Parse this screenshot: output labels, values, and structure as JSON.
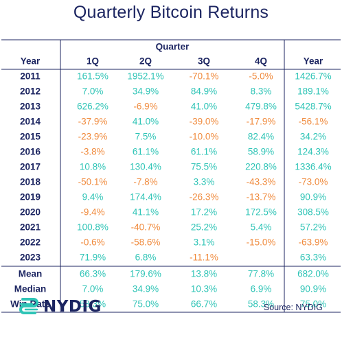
{
  "chart_data": {
    "type": "table",
    "title": "Quarterly Bitcoin Returns",
    "group_header": "Quarter",
    "columns": [
      "Year",
      "1Q",
      "2Q",
      "3Q",
      "4Q",
      "Year"
    ],
    "rows": [
      {
        "year": "2011",
        "values": [
          "161.5%",
          "1952.1%",
          "-70.1%",
          "-5.0%",
          "1426.7%"
        ]
      },
      {
        "year": "2012",
        "values": [
          "7.0%",
          "34.9%",
          "84.9%",
          "8.3%",
          "189.1%"
        ]
      },
      {
        "year": "2013",
        "values": [
          "626.2%",
          "-6.9%",
          "41.0%",
          "479.8%",
          "5428.7%"
        ]
      },
      {
        "year": "2014",
        "values": [
          "-37.9%",
          "41.0%",
          "-39.0%",
          "-17.9%",
          "-56.1%"
        ]
      },
      {
        "year": "2015",
        "values": [
          "-23.9%",
          "7.5%",
          "-10.0%",
          "82.4%",
          "34.2%"
        ]
      },
      {
        "year": "2016",
        "values": [
          "-3.8%",
          "61.1%",
          "61.1%",
          "58.9%",
          "124.3%"
        ]
      },
      {
        "year": "2017",
        "values": [
          "10.8%",
          "130.4%",
          "75.5%",
          "220.8%",
          "1336.4%"
        ]
      },
      {
        "year": "2018",
        "values": [
          "-50.1%",
          "-7.8%",
          "3.3%",
          "-43.3%",
          "-73.0%"
        ]
      },
      {
        "year": "2019",
        "values": [
          "9.4%",
          "174.4%",
          "-26.3%",
          "-13.7%",
          "90.9%"
        ]
      },
      {
        "year": "2020",
        "values": [
          "-9.4%",
          "41.1%",
          "17.2%",
          "172.5%",
          "308.5%"
        ]
      },
      {
        "year": "2021",
        "values": [
          "100.8%",
          "-40.7%",
          "25.2%",
          "5.4%",
          "57.2%"
        ]
      },
      {
        "year": "2022",
        "values": [
          "-0.6%",
          "-58.6%",
          "3.1%",
          "-15.0%",
          "-63.9%"
        ]
      },
      {
        "year": "2023",
        "values": [
          "71.9%",
          "6.8%",
          "-11.1%",
          "",
          "63.3%"
        ]
      }
    ],
    "summary": [
      {
        "label": "Mean",
        "values": [
          "66.3%",
          "179.6%",
          "13.8%",
          "77.8%",
          "682.0%"
        ]
      },
      {
        "label": "Median",
        "values": [
          "7.0%",
          "34.9%",
          "10.3%",
          "6.9%",
          "90.9%"
        ]
      },
      {
        "label": "Win Rate",
        "values": [
          "58.3%",
          "75.0%",
          "66.7%",
          "58.3%",
          "75.0%"
        ]
      }
    ]
  },
  "colors": {
    "positive": "#2ec4b6",
    "negative": "#f08a3c",
    "summary": "#2ec4b6",
    "text": "#1c2561",
    "rule": "#1c2561"
  },
  "footer": {
    "logo_text": "NYDIG",
    "logo_icon": "nydig-logo-icon",
    "source": "Source: NYDIG"
  }
}
